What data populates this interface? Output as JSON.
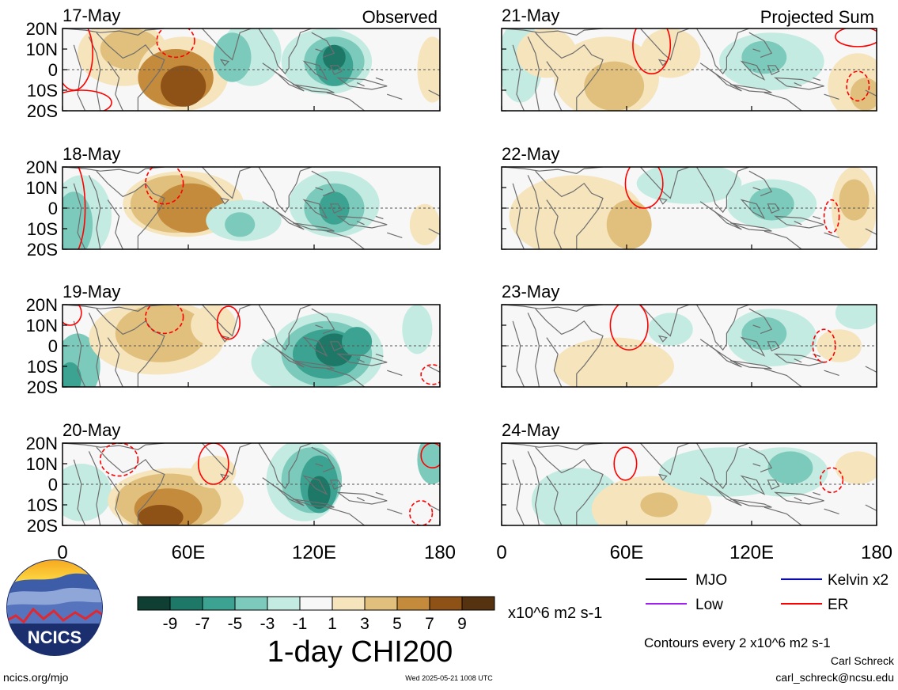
{
  "figure": {
    "variable_title": "1-day CHI200",
    "units": "x10^6 m2 s-1",
    "observed_label": "Observed",
    "projected_label": "Projected Sum",
    "contour_note": "Contours every 2 x10^6 m2 s-1",
    "author": "Carl Schreck",
    "email": "carl_schreck@ncsu.edu",
    "website": "ncics.org/mjo",
    "timestamp": "Wed 2025-05-21 1008 UTC",
    "logo_text": "NCICS"
  },
  "panels": {
    "observed": [
      {
        "date": "17-May"
      },
      {
        "date": "18-May"
      },
      {
        "date": "19-May"
      },
      {
        "date": "20-May"
      }
    ],
    "projected": [
      {
        "date": "21-May"
      },
      {
        "date": "22-May"
      },
      {
        "date": "23-May"
      },
      {
        "date": "24-May"
      }
    ]
  },
  "axes": {
    "lat_ticks": [
      "20N",
      "10N",
      "0",
      "10S",
      "20S"
    ],
    "lon_ticks": [
      "0",
      "60E",
      "120E",
      "180"
    ]
  },
  "colorbar": {
    "tick_labels": [
      "-9",
      "-7",
      "-5",
      "-3",
      "-1",
      "1",
      "3",
      "5",
      "7",
      "9"
    ],
    "colors": [
      "#0f3f33",
      "#1e7867",
      "#3ca291",
      "#7ccabb",
      "#c4ebe1",
      "#f7f7f7",
      "#f5e4bc",
      "#e0c07c",
      "#c48b3d",
      "#8f5216",
      "#553210"
    ]
  },
  "legend": {
    "items": [
      {
        "label": "MJO",
        "color": "#000000"
      },
      {
        "label": "Kelvin x2",
        "color": "#0000ff"
      },
      {
        "label": "Low",
        "color": "#a020f0"
      },
      {
        "label": "ER",
        "color": "#ff0000"
      }
    ]
  }
}
